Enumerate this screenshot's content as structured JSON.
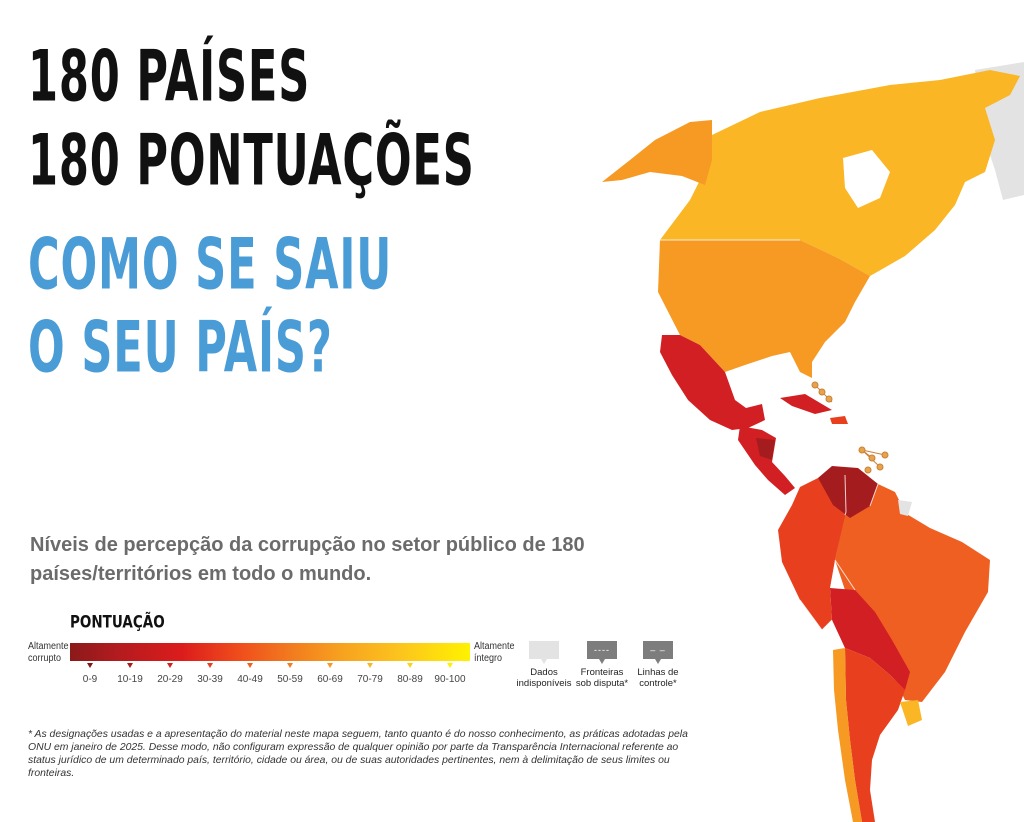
{
  "title": {
    "line1": "180 PAÍSES",
    "line2": "180 PONTUAÇÕES",
    "line3": "COMO SE SAIU",
    "line4": "O SEU PAÍS?"
  },
  "subtitle": "Níveis de percepção da corrupção no setor público de 180 países/territórios em todo o mundo.",
  "legend": {
    "title": "PONTUAÇÃO",
    "left_label": "Altamente corrupto",
    "right_label": "Altamente íntegro",
    "bins": [
      {
        "label": "0-9",
        "color": "#7e1717"
      },
      {
        "label": "10-19",
        "color": "#a51c1f"
      },
      {
        "label": "20-29",
        "color": "#d11f23"
      },
      {
        "label": "30-39",
        "color": "#e8401f"
      },
      {
        "label": "40-49",
        "color": "#ef5f21"
      },
      {
        "label": "50-59",
        "color": "#f27e22"
      },
      {
        "label": "60-69",
        "color": "#f69a23"
      },
      {
        "label": "70-79",
        "color": "#fab624"
      },
      {
        "label": "80-89",
        "color": "#fdd21d"
      },
      {
        "label": "90-100",
        "color": "#fff200"
      }
    ],
    "extras": [
      {
        "label": "Dados indisponíveis",
        "symbol": ""
      },
      {
        "label": "Fronteiras sob disputa*",
        "symbol": "----"
      },
      {
        "label": "Linhas de controle*",
        "symbol": "– –"
      }
    ]
  },
  "footnote": "* As designações usadas e a apresentação do material neste mapa seguem, tanto quanto é do nosso conhecimento, as práticas adotadas pela ONU em janeiro de 2025. Desse modo, não configuram expressão de qualquer opinião por parte da Transparência Internacional referente ao status jurídico de um determinado país, território, cidade ou área, ou de suas autoridades pertinentes, nem à delimitação de seus limites ou fronteiras.",
  "map": {
    "regions": [
      {
        "name": "Groenlândia",
        "color": "#e3e3e3"
      },
      {
        "name": "Alasca",
        "color": "#f69a23"
      },
      {
        "name": "Canadá",
        "color": "#fab624"
      },
      {
        "name": "Estados Unidos",
        "color": "#f69a23"
      },
      {
        "name": "México",
        "color": "#d11f23"
      },
      {
        "name": "América Central",
        "color": "#d11f23"
      },
      {
        "name": "Cuba",
        "color": "#d11f23"
      },
      {
        "name": "Venezuela",
        "color": "#a51c1f"
      },
      {
        "name": "Guiana e Suriname",
        "color": "#ef5f21"
      },
      {
        "name": "Brasil",
        "color": "#ef5f21"
      },
      {
        "name": "Colômbia, Equador e Peru",
        "color": "#e8401f"
      },
      {
        "name": "Bolívia e Paraguai",
        "color": "#d11f23"
      },
      {
        "name": "Argentina",
        "color": "#e8401f"
      },
      {
        "name": "Chile",
        "color": "#f69a23"
      },
      {
        "name": "Uruguai",
        "color": "#fab624"
      }
    ]
  }
}
